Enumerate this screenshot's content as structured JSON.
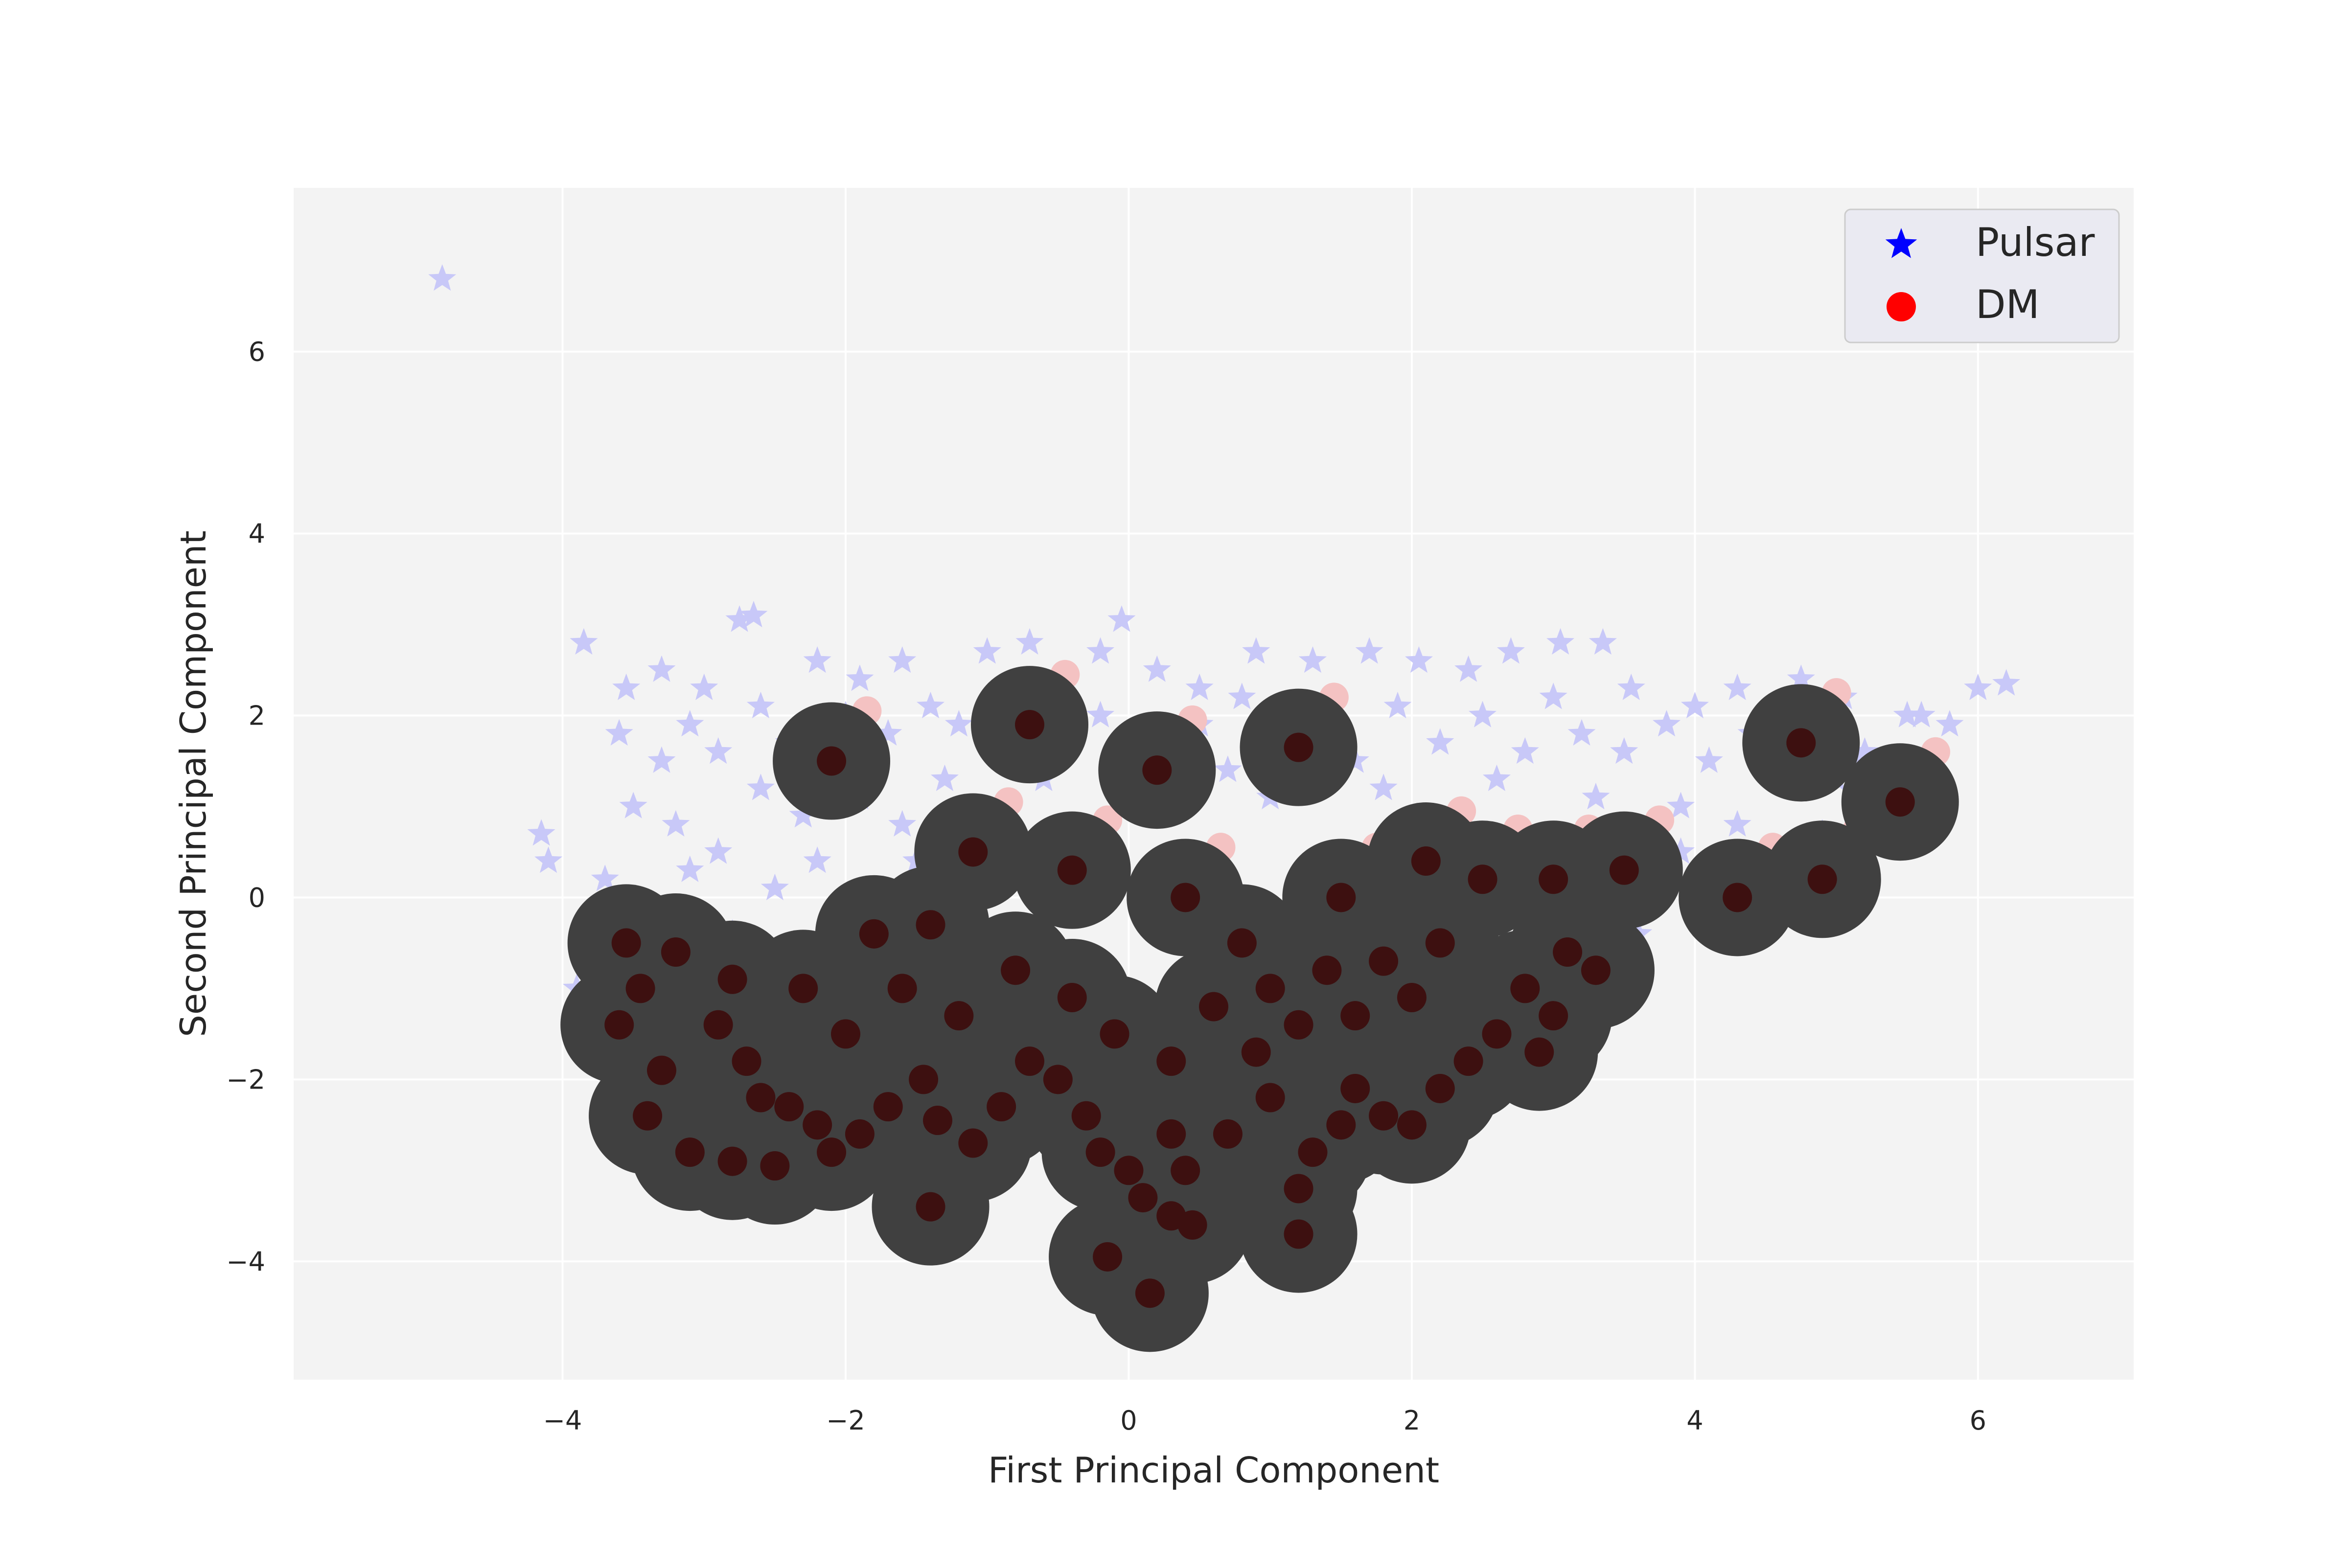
{
  "chart_data": {
    "type": "scatter",
    "title": "",
    "xlabel": "First Principal Component",
    "ylabel": "Second Principal Component",
    "xlim": [
      -5.9,
      7.1
    ],
    "ylim": [
      -5.3,
      7.8
    ],
    "x_ticks": [
      -4,
      -2,
      0,
      2,
      4,
      6
    ],
    "y_ticks": [
      -4,
      -2,
      0,
      2,
      4,
      6
    ],
    "x_tick_labels": [
      "−4",
      "−2",
      "0",
      "2",
      "4",
      "6"
    ],
    "y_tick_labels": [
      "−4",
      "−2",
      "0",
      "2",
      "4",
      "6"
    ],
    "grid": true,
    "legend_position": "top-right",
    "background": "#f3f3f3",
    "series": [
      {
        "name": "Pulsar",
        "marker": "star",
        "color": "#0000ff",
        "plot_color": "#c8c8f8",
        "points": [
          [
            -4.85,
            6.8
          ],
          [
            -3.85,
            2.8
          ],
          [
            -2.75,
            3.05
          ],
          [
            -2.65,
            3.1
          ],
          [
            -0.05,
            3.05
          ],
          [
            -4.15,
            0.7
          ],
          [
            -4.1,
            0.4
          ],
          [
            -3.55,
            2.3
          ],
          [
            -3.3,
            2.5
          ],
          [
            -3.0,
            2.3
          ],
          [
            -2.2,
            2.6
          ],
          [
            -1.9,
            2.4
          ],
          [
            -1.6,
            2.6
          ],
          [
            -1.0,
            2.7
          ],
          [
            -0.7,
            2.8
          ],
          [
            -0.2,
            2.7
          ],
          [
            0.2,
            2.5
          ],
          [
            0.5,
            2.3
          ],
          [
            0.9,
            2.7
          ],
          [
            1.3,
            2.6
          ],
          [
            1.7,
            2.7
          ],
          [
            2.05,
            2.6
          ],
          [
            2.4,
            2.5
          ],
          [
            2.7,
            2.7
          ],
          [
            3.05,
            2.8
          ],
          [
            3.35,
            2.8
          ],
          [
            3.55,
            2.3
          ],
          [
            4.0,
            2.1
          ],
          [
            4.3,
            2.3
          ],
          [
            4.75,
            2.4
          ],
          [
            5.05,
            2.2
          ],
          [
            5.5,
            2.0
          ],
          [
            5.8,
            1.9
          ],
          [
            6.0,
            2.3
          ],
          [
            6.2,
            2.35
          ],
          [
            -3.6,
            1.8
          ],
          [
            -3.3,
            1.5
          ],
          [
            -3.1,
            1.9
          ],
          [
            -2.9,
            1.6
          ],
          [
            -2.6,
            2.1
          ],
          [
            -2.4,
            1.7
          ],
          [
            -2.0,
            2.0
          ],
          [
            -1.7,
            1.8
          ],
          [
            -1.4,
            2.1
          ],
          [
            -1.2,
            1.9
          ],
          [
            -0.9,
            2.2
          ],
          [
            -0.5,
            1.8
          ],
          [
            -0.2,
            2.0
          ],
          [
            0.1,
            1.7
          ],
          [
            0.5,
            1.9
          ],
          [
            0.8,
            2.2
          ],
          [
            1.1,
            1.6
          ],
          [
            1.4,
            2.0
          ],
          [
            1.6,
            1.5
          ],
          [
            1.9,
            2.1
          ],
          [
            2.2,
            1.7
          ],
          [
            2.5,
            2.0
          ],
          [
            2.8,
            1.6
          ],
          [
            3.0,
            2.2
          ],
          [
            3.2,
            1.8
          ],
          [
            3.5,
            1.6
          ],
          [
            3.8,
            1.9
          ],
          [
            4.1,
            1.5
          ],
          [
            4.4,
            1.8
          ],
          [
            4.7,
            1.6
          ],
          [
            5.0,
            1.3
          ],
          [
            5.3,
            1.2
          ],
          [
            -3.5,
            1.0
          ],
          [
            -3.2,
            0.8
          ],
          [
            -2.9,
            0.5
          ],
          [
            -2.6,
            1.2
          ],
          [
            -2.3,
            0.9
          ],
          [
            -1.9,
            1.1
          ],
          [
            -1.6,
            0.8
          ],
          [
            -1.3,
            1.3
          ],
          [
            -0.9,
            1.0
          ],
          [
            -0.6,
            1.3
          ],
          [
            0.0,
            1.2
          ],
          [
            0.4,
            1.1
          ],
          [
            0.7,
            1.4
          ],
          [
            1.0,
            1.1
          ],
          [
            1.8,
            1.2
          ],
          [
            2.6,
            1.3
          ],
          [
            3.3,
            1.1
          ],
          [
            3.9,
            1.0
          ],
          [
            4.3,
            0.8
          ],
          [
            4.6,
            0.5
          ],
          [
            4.9,
            0.7
          ],
          [
            5.2,
            0.9
          ],
          [
            -3.7,
            0.2
          ],
          [
            -3.4,
            -0.2
          ],
          [
            -3.1,
            0.3
          ],
          [
            -2.8,
            -0.4
          ],
          [
            -2.5,
            0.1
          ],
          [
            -2.2,
            0.4
          ],
          [
            -1.8,
            0.0
          ],
          [
            -1.5,
            0.4
          ],
          [
            -3.3,
            -0.6
          ],
          [
            -3.9,
            -1.0
          ],
          [
            3.7,
            0.1
          ],
          [
            3.6,
            -0.4
          ],
          [
            3.9,
            0.5
          ],
          [
            5.2,
            1.6
          ],
          [
            5.6,
            2.0
          ]
        ]
      },
      {
        "name": "DM",
        "marker": "circle",
        "color": "#ff0000",
        "plot_color": "#3d1010",
        "points": [
          [
            -3.55,
            -0.5
          ],
          [
            -3.45,
            -1.0
          ],
          [
            -3.6,
            -1.4
          ],
          [
            -3.3,
            -1.9
          ],
          [
            -3.4,
            -2.4
          ],
          [
            -3.1,
            -2.8
          ],
          [
            -2.8,
            -2.9
          ],
          [
            -2.5,
            -2.95
          ],
          [
            -2.9,
            -1.4
          ],
          [
            -2.7,
            -1.8
          ],
          [
            -2.6,
            -2.2
          ],
          [
            -2.4,
            -2.3
          ],
          [
            -2.2,
            -2.5
          ],
          [
            -2.1,
            -2.8
          ],
          [
            -1.9,
            -2.6
          ],
          [
            -1.7,
            -2.3
          ],
          [
            -1.45,
            -2.0
          ],
          [
            -1.35,
            -2.45
          ],
          [
            -1.4,
            -3.4
          ],
          [
            -1.1,
            -2.7
          ],
          [
            -0.9,
            -2.3
          ],
          [
            -0.7,
            -1.8
          ],
          [
            -0.5,
            -2.0
          ],
          [
            -0.3,
            -2.4
          ],
          [
            -0.2,
            -2.8
          ],
          [
            0.0,
            -3.0
          ],
          [
            0.1,
            -3.3
          ],
          [
            0.3,
            -2.6
          ],
          [
            0.4,
            -3.0
          ],
          [
            0.45,
            -3.6
          ],
          [
            0.3,
            -3.5
          ],
          [
            -0.15,
            -3.95
          ],
          [
            0.15,
            -4.35
          ],
          [
            1.2,
            -3.7
          ],
          [
            1.2,
            -3.2
          ],
          [
            1.3,
            -2.8
          ],
          [
            1.5,
            -2.5
          ],
          [
            1.6,
            -2.1
          ],
          [
            1.8,
            -2.4
          ],
          [
            2.0,
            -2.5
          ],
          [
            2.2,
            -2.1
          ],
          [
            2.4,
            -1.8
          ],
          [
            2.6,
            -1.5
          ],
          [
            2.8,
            -1.0
          ],
          [
            3.0,
            -1.3
          ],
          [
            2.9,
            -1.7
          ],
          [
            3.1,
            -0.6
          ],
          [
            3.3,
            -0.8
          ],
          [
            3.5,
            0.3
          ],
          [
            4.3,
            0.0
          ],
          [
            4.9,
            0.2
          ],
          [
            5.45,
            1.05
          ],
          [
            -0.7,
            1.9
          ],
          [
            -2.1,
            1.5
          ],
          [
            0.2,
            1.4
          ],
          [
            1.2,
            1.65
          ],
          [
            4.75,
            1.7
          ],
          [
            -1.1,
            0.5
          ],
          [
            -0.4,
            0.3
          ],
          [
            0.4,
            0.0
          ],
          [
            0.8,
            -0.5
          ],
          [
            1.0,
            -1.0
          ],
          [
            1.2,
            -1.4
          ],
          [
            1.4,
            -0.8
          ],
          [
            1.6,
            -1.3
          ],
          [
            1.8,
            -0.7
          ],
          [
            2.0,
            -1.1
          ],
          [
            2.2,
            -0.5
          ],
          [
            0.6,
            -1.2
          ],
          [
            0.9,
            -1.7
          ],
          [
            0.3,
            -1.8
          ],
          [
            -0.1,
            -1.5
          ],
          [
            -0.4,
            -1.1
          ],
          [
            -0.8,
            -0.8
          ],
          [
            -1.2,
            -1.3
          ],
          [
            -1.6,
            -1.0
          ],
          [
            -2.0,
            -1.5
          ],
          [
            -2.3,
            -1.0
          ],
          [
            -2.8,
            -0.9
          ],
          [
            -3.2,
            -0.6
          ],
          [
            -1.8,
            -0.4
          ],
          [
            -1.4,
            -0.3
          ],
          [
            1.0,
            -2.2
          ],
          [
            0.7,
            -2.6
          ],
          [
            1.5,
            0.0
          ],
          [
            2.5,
            0.2
          ],
          [
            3.0,
            0.2
          ],
          [
            2.1,
            0.4
          ]
        ]
      }
    ],
    "shaded_regions": [
      {
        "color": "#404040",
        "note_bounds_x": [
          -4.2,
          5.8
        ],
        "note_bounds_y": [
          -4.7,
          2.0
        ]
      }
    ],
    "light_secondary_markers": {
      "color": "#f4c2c2"
    }
  }
}
